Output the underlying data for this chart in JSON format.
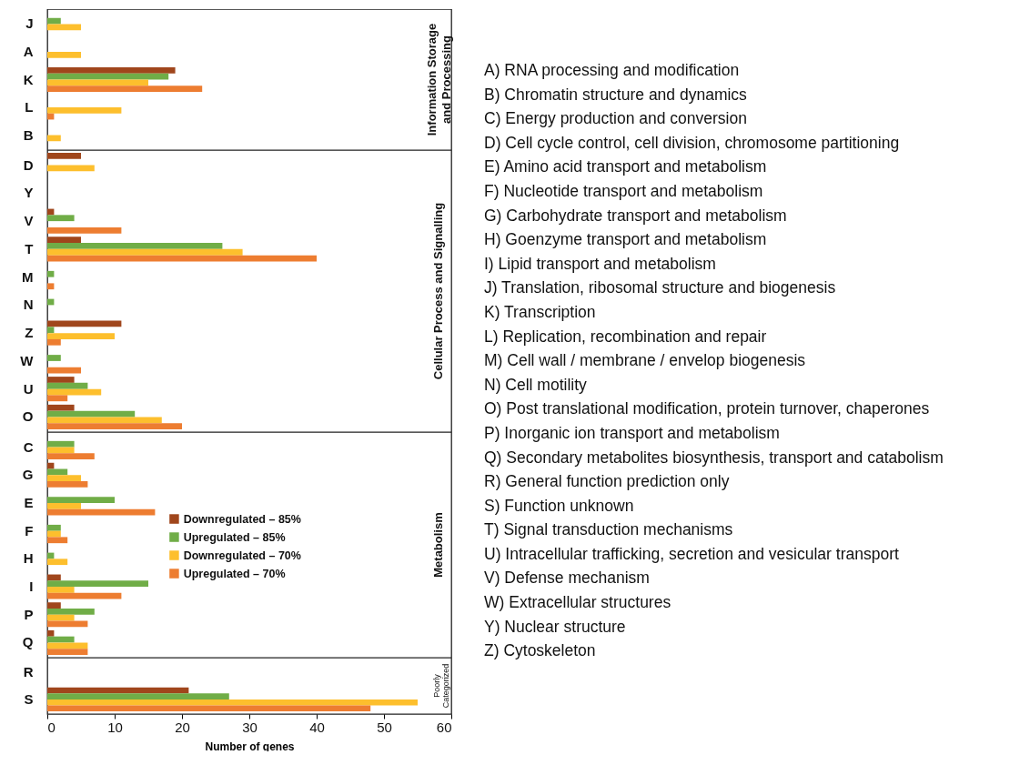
{
  "chart_data": [
    {
      "type": "bar",
      "orientation": "horizontal",
      "title": "Information Storage and Processing",
      "categories": [
        "J",
        "A",
        "K",
        "L",
        "B"
      ],
      "series": [
        {
          "color": "#a0461c",
          "values": [
            0,
            0,
            19,
            0,
            0
          ]
        },
        {
          "color": "#70ad47",
          "values": [
            2,
            0,
            18,
            0,
            0
          ]
        },
        {
          "color": "#fdbf2d",
          "values": [
            5,
            5,
            15,
            11,
            2
          ]
        },
        {
          "color": "#ed7d31",
          "values": [
            0,
            0,
            23,
            1,
            0
          ]
        }
      ],
      "xlim": [
        0,
        60
      ],
      "xticks": [
        0,
        10,
        20,
        30,
        40,
        50,
        60
      ],
      "tick_labels": "y",
      "annotations": [
        "A) RNA processing and modification",
        "B) Chromatin structure and dynamics",
        "C) Energy production and conversion",
        "D) Cell cycle control, cell division, chromosome partitioning",
        "E) Amino acid transport and metabolism",
        "F) Nucleotide transport and metabolism",
        "G) Carbohydrate transport and metabolism",
        "H) Goenzyme transport and metabolism",
        "I) Lipid transport and metabolism",
        "J) Translation, ribosomal structure and biogenesis",
        "K) Transcription",
        "L) Replication, recombination and repair",
        "M) Cell wall / membrane / envelop biogenesis",
        "N) Cell motility",
        "O) Post translational modification, protein turnover, chaperones",
        "P) Inorganic ion transport and metabolism",
        "Q) Secondary metabolites biosynthesis, transport and catabolism",
        "R) General function prediction only",
        "S) Function unknown",
        "T) Signal transduction mechanisms",
        "U) Intracellular trafficking, secretion and vesicular transport",
        "V) Defense mechanism",
        "W) Extracellular structures",
        "Y) Nuclear structure",
        "Z) Cytoskeleton"
      ]
    },
    {
      "type": "bar",
      "orientation": "horizontal",
      "title": "Cellular Process and Signalling",
      "categories": [
        "D",
        "Y",
        "V",
        "T",
        "M",
        "N",
        "Z",
        "W",
        "U",
        "O"
      ],
      "series": [
        {
          "color": "#a0461c",
          "values": [
            5,
            0,
            1,
            5,
            0,
            0,
            11,
            0,
            4,
            4
          ]
        },
        {
          "color": "#70ad47",
          "values": [
            0,
            0,
            4,
            26,
            1,
            1,
            1,
            2,
            6,
            13
          ]
        },
        {
          "color": "#fdbf2d",
          "values": [
            7,
            0,
            0,
            29,
            0,
            0,
            10,
            0,
            8,
            17
          ]
        },
        {
          "color": "#ed7d31",
          "values": [
            0,
            0,
            11,
            40,
            1,
            0,
            2,
            5,
            3,
            20
          ]
        }
      ],
      "xlim": [
        0,
        60
      ],
      "xticks": [
        0,
        10,
        20,
        30,
        40,
        50,
        60
      ],
      "tick_labels": "y"
    },
    {
      "type": "bar",
      "orientation": "horizontal",
      "title": "Metabolism",
      "categories": [
        "C",
        "G",
        "E",
        "F",
        "H",
        "I",
        "P",
        "Q"
      ],
      "series": [
        {
          "name": "Downregulated – 85%",
          "color": "#a0461c",
          "values": [
            0,
            1,
            0,
            0,
            0,
            2,
            2,
            1
          ]
        },
        {
          "name": "Upregulated – 85%",
          "color": "#70ad47",
          "values": [
            4,
            3,
            10,
            2,
            1,
            15,
            7,
            4
          ]
        },
        {
          "name": "Downregulated – 70%",
          "color": "#fdbf2d",
          "values": [
            4,
            5,
            5,
            2,
            3,
            4,
            4,
            6
          ]
        },
        {
          "name": "Upregulated – 70%",
          "color": "#ed7d31",
          "values": [
            7,
            6,
            16,
            3,
            0,
            11,
            6,
            6
          ]
        }
      ],
      "xlim": [
        0,
        60
      ],
      "xticks": [
        0,
        10,
        20,
        30,
        40,
        50,
        60
      ],
      "tick_labels": "y",
      "legend": "center"
    },
    {
      "type": "bar",
      "orientation": "horizontal",
      "title": "Poorly Categorized",
      "categories": [
        "R",
        "S"
      ],
      "series": [
        {
          "color": "#a0461c",
          "values": [
            0,
            21
          ]
        },
        {
          "color": "#70ad47",
          "values": [
            0,
            27
          ]
        },
        {
          "color": "#fdbf2d",
          "values": [
            0,
            55
          ]
        },
        {
          "color": "#ed7d31",
          "values": [
            0,
            48
          ]
        }
      ],
      "xlim": [
        0,
        60
      ],
      "xticks": [
        0,
        10,
        20,
        30,
        40,
        50,
        60
      ],
      "xlabel": "Number of genes"
    }
  ]
}
